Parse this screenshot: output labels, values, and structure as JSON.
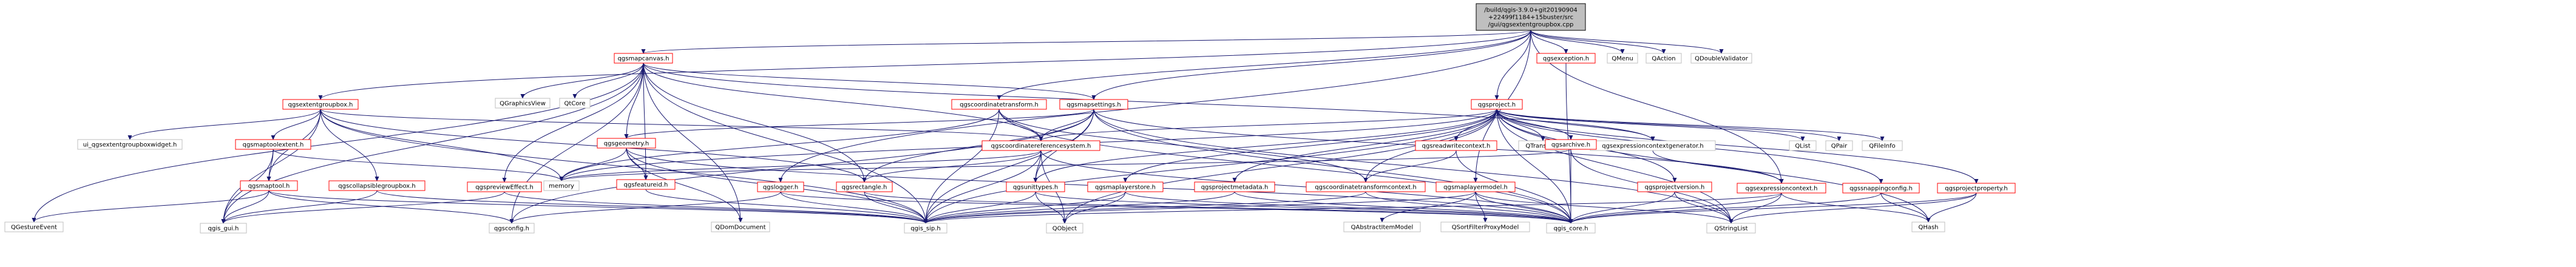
{
  "diagram": {
    "colors": {
      "root_fill": "#bfbfbf",
      "root_border": "#000000",
      "local_border": "#ff0000",
      "system_border": "#bfbfbf",
      "edge": "#191970",
      "background": "#ffffff"
    },
    "nodes": [
      {
        "id": "root",
        "label": "/build/qgis-3.9.0+git20190904\n+22499f1184+15buster/src\n/gui/qgsextentgroupbox.cpp",
        "kind": "root"
      },
      {
        "id": "qgsmapcanvas",
        "label": "qgsmapcanvas.h",
        "kind": "local"
      },
      {
        "id": "qgsextentgroupbox",
        "label": "qgsextentgroupbox.h",
        "kind": "local"
      },
      {
        "id": "qgscoordinatetransform",
        "label": "qgscoordinatetransform.h",
        "kind": "local"
      },
      {
        "id": "qgsmapsettings",
        "label": "qgsmapsettings.h",
        "kind": "local"
      },
      {
        "id": "qgsproject",
        "label": "qgsproject.h",
        "kind": "local"
      },
      {
        "id": "qgsexception",
        "label": "qgsexception.h",
        "kind": "local"
      },
      {
        "id": "QMenu",
        "label": "QMenu",
        "kind": "system"
      },
      {
        "id": "QAction",
        "label": "QAction",
        "kind": "system"
      },
      {
        "id": "QDoubleValidator",
        "label": "QDoubleValidator",
        "kind": "system"
      },
      {
        "id": "QGraphicsView",
        "label": "QGraphicsView",
        "kind": "system"
      },
      {
        "id": "QtCore",
        "label": "QtCore",
        "kind": "system"
      },
      {
        "id": "ui_qgsextentgroupboxwidget",
        "label": "ui_qgsextentgroupboxwidget.h",
        "kind": "system"
      },
      {
        "id": "qgsmaptoolextent",
        "label": "qgsmaptoolextent.h",
        "kind": "local"
      },
      {
        "id": "qgsgeometry",
        "label": "qgsgeometry.h",
        "kind": "local"
      },
      {
        "id": "qgscoordinatereferencesystem",
        "label": "qgscoordinatereferencesystem.h",
        "kind": "local"
      },
      {
        "id": "qgsreadwritecontext",
        "label": "qgsreadwritecontext.h",
        "kind": "local"
      },
      {
        "id": "QTranslator",
        "label": "QTranslator",
        "kind": "system"
      },
      {
        "id": "qgsexpressioncontextgenerator",
        "label": "qgsexpressioncontextgenerator.h",
        "kind": "system"
      },
      {
        "id": "QList",
        "label": "QList",
        "kind": "system"
      },
      {
        "id": "QPair",
        "label": "QPair",
        "kind": "system"
      },
      {
        "id": "QFileInfo",
        "label": "QFileInfo",
        "kind": "system"
      },
      {
        "id": "qgsmaptool",
        "label": "qgsmaptool.h",
        "kind": "local"
      },
      {
        "id": "qgscollapsiblegroupbox",
        "label": "qgscollapsiblegroupbox.h",
        "kind": "local"
      },
      {
        "id": "qgspreviewEffect",
        "label": "qgspreviewEffect.h",
        "kind": "local"
      },
      {
        "id": "qgsfeatureid",
        "label": "qgsfeatureid.h",
        "kind": "local"
      },
      {
        "id": "memory",
        "label": "memory",
        "kind": "system"
      },
      {
        "id": "qgslogger",
        "label": "qgslogger.h",
        "kind": "local"
      },
      {
        "id": "qgsrectangle",
        "label": "qgsrectangle.h",
        "kind": "local"
      },
      {
        "id": "qgsunittypes",
        "label": "qgsunittypes.h",
        "kind": "local"
      },
      {
        "id": "qgsmaplayerstore",
        "label": "qgsmaplayerstore.h",
        "kind": "local"
      },
      {
        "id": "qgsprojectmetadata",
        "label": "qgsprojectmetadata.h",
        "kind": "local"
      },
      {
        "id": "qgscoordinatetransformcontext",
        "label": "qgscoordinatetransformcontext.h",
        "kind": "local"
      },
      {
        "id": "qgsmaplayermodel",
        "label": "qgsmaplayermodel.h",
        "kind": "local"
      },
      {
        "id": "qgsarchive",
        "label": "qgsarchive.h",
        "kind": "local"
      },
      {
        "id": "qgsprojectversion",
        "label": "qgsprojectversion.h",
        "kind": "local"
      },
      {
        "id": "qgsexpressioncontext",
        "label": "qgsexpressioncontext.h",
        "kind": "local"
      },
      {
        "id": "qgssnappingconfig",
        "label": "qgssnappingconfig.h",
        "kind": "local"
      },
      {
        "id": "qgsprojectproperty",
        "label": "qgsprojectproperty.h",
        "kind": "local"
      },
      {
        "id": "QGestureEvent",
        "label": "QGestureEvent",
        "kind": "system"
      },
      {
        "id": "qgis_gui",
        "label": "qgis_gui.h",
        "kind": "system"
      },
      {
        "id": "qgsconfig",
        "label": "qgsconfig.h",
        "kind": "system"
      },
      {
        "id": "qgis_sip",
        "label": "qgis_sip.h",
        "kind": "system"
      },
      {
        "id": "QDomDocument",
        "label": "QDomDocument",
        "kind": "system"
      },
      {
        "id": "QObject",
        "label": "QObject",
        "kind": "system"
      },
      {
        "id": "QAbstractItemModel",
        "label": "QAbstractItemModel",
        "kind": "system"
      },
      {
        "id": "QSortFilterProxyModel",
        "label": "QSortFilterProxyModel",
        "kind": "system"
      },
      {
        "id": "qgis_core",
        "label": "qgis_core.h",
        "kind": "system"
      },
      {
        "id": "QStringList",
        "label": "QStringList",
        "kind": "system"
      },
      {
        "id": "QHash",
        "label": "QHash",
        "kind": "system"
      }
    ],
    "edges": [
      [
        "root",
        "qgsmapcanvas"
      ],
      [
        "root",
        "qgsextentgroupbox"
      ],
      [
        "root",
        "qgscoordinatetransform"
      ],
      [
        "root",
        "qgsmapsettings"
      ],
      [
        "root",
        "qgsproject"
      ],
      [
        "root",
        "qgsexception"
      ],
      [
        "root",
        "QMenu"
      ],
      [
        "root",
        "QAction"
      ],
      [
        "root",
        "QDoubleValidator"
      ],
      [
        "root",
        "qgslogger"
      ],
      [
        "root",
        "qgsmaplayermodel"
      ],
      [
        "root",
        "qgsexpressioncontext"
      ],
      [
        "qgsmapcanvas",
        "QGraphicsView"
      ],
      [
        "qgsmapcanvas",
        "QtCore"
      ],
      [
        "qgsmapcanvas",
        "qgsmapsettings"
      ],
      [
        "qgsmapcanvas",
        "qgsgeometry"
      ],
      [
        "qgsmapcanvas",
        "qgsfeatureid"
      ],
      [
        "qgsmapcanvas",
        "qgsrectangle"
      ],
      [
        "qgsmapcanvas",
        "qgspreviewEffect"
      ],
      [
        "qgsmapcanvas",
        "qgsconfig"
      ],
      [
        "qgsmapcanvas",
        "qgis_gui"
      ],
      [
        "qgsmapcanvas",
        "QGestureEvent"
      ],
      [
        "qgsmapcanvas",
        "qgis_sip"
      ],
      [
        "qgsmapcanvas",
        "QDomDocument"
      ],
      [
        "qgsmapcanvas",
        "qgsexpressioncontextgenerator"
      ],
      [
        "qgsmapcanvas",
        "qgscoordinatereferencesystem"
      ],
      [
        "qgsextentgroupbox",
        "ui_qgsextentgroupboxwidget"
      ],
      [
        "qgsextentgroupbox",
        "qgsmaptoolextent"
      ],
      [
        "qgsextentgroupbox",
        "qgscollapsiblegroupbox"
      ],
      [
        "qgsextentgroupbox",
        "qgsmaptool"
      ],
      [
        "qgsextentgroupbox",
        "qgis_gui"
      ],
      [
        "qgsextentgroupbox",
        "memory"
      ],
      [
        "qgsextentgroupbox",
        "qgsrectangle"
      ],
      [
        "qgsextentgroupbox",
        "qgscoordinatereferencesystem"
      ],
      [
        "qgsextentgroupbox",
        "qgis_sip"
      ],
      [
        "qgsmaptoolextent",
        "qgsmaptool"
      ],
      [
        "qgsmaptoolextent",
        "qgis_gui"
      ],
      [
        "qgsmaptoolextent",
        "memory"
      ],
      [
        "qgsmaptool",
        "qgsconfig"
      ],
      [
        "qgsmaptool",
        "qgis_gui"
      ],
      [
        "qgsmaptool",
        "QGestureEvent"
      ],
      [
        "qgsmaptool",
        "qgis_sip"
      ],
      [
        "qgscollapsiblegroupbox",
        "qgis_gui"
      ],
      [
        "qgscollapsiblegroupbox",
        "qgis_sip"
      ],
      [
        "qgspreviewEffect",
        "qgis_gui"
      ],
      [
        "qgspreviewEffect",
        "qgis_sip"
      ],
      [
        "qgscoordinatetransform",
        "qgscoordinatereferencesystem"
      ],
      [
        "qgscoordinatetransform",
        "qgis_sip"
      ],
      [
        "qgscoordinatetransform",
        "qgis_core"
      ],
      [
        "qgscoordinatetransform",
        "qgscoordinatetransformcontext"
      ],
      [
        "qgscoordinatetransform",
        "memory"
      ],
      [
        "qgsmapsettings",
        "qgscoordinatereferencesystem"
      ],
      [
        "qgsmapsettings",
        "qgsgeometry"
      ],
      [
        "qgsmapsettings",
        "qgsrectangle"
      ],
      [
        "qgsmapsettings",
        "qgsunittypes"
      ],
      [
        "qgsmapsettings",
        "qgis_sip"
      ],
      [
        "qgsmapsettings",
        "qgis_core"
      ],
      [
        "qgsmapsettings",
        "QStringList"
      ],
      [
        "qgsmapsettings",
        "qgsconfig"
      ],
      [
        "qgsmapsettings",
        "qgsexpressioncontext"
      ],
      [
        "qgsproject",
        "QList"
      ],
      [
        "qgsproject",
        "QPair"
      ],
      [
        "qgsproject",
        "QFileInfo"
      ],
      [
        "qgsproject",
        "QTranslator"
      ],
      [
        "qgsproject",
        "qgsexpressioncontextgenerator"
      ],
      [
        "qgsproject",
        "qgsreadwritecontext"
      ],
      [
        "qgsproject",
        "qgsarchive"
      ],
      [
        "qgsproject",
        "qgsprojectversion"
      ],
      [
        "qgsproject",
        "qgssnappingconfig"
      ],
      [
        "qgsproject",
        "qgsprojectproperty"
      ],
      [
        "qgsproject",
        "qgsprojectmetadata"
      ],
      [
        "qgsproject",
        "qgsmaplayerstore"
      ],
      [
        "qgsproject",
        "qgscoordinatetransformcontext"
      ],
      [
        "qgsproject",
        "qgscoordinatereferencesystem"
      ],
      [
        "qgsproject",
        "qgsunittypes"
      ],
      [
        "qgsproject",
        "qgis_sip"
      ],
      [
        "qgsproject",
        "qgis_core"
      ],
      [
        "qgsproject",
        "QStringList"
      ],
      [
        "qgsproject",
        "QHash"
      ],
      [
        "qgsproject",
        "memory"
      ],
      [
        "qgsproject",
        "QObject"
      ],
      [
        "qgsexception",
        "qgis_core"
      ],
      [
        "qgsgeometry",
        "memory"
      ],
      [
        "qgsgeometry",
        "qgsfeatureid"
      ],
      [
        "qgsgeometry",
        "qgis_sip"
      ],
      [
        "qgsgeometry",
        "qgis_core"
      ],
      [
        "qgsgeometry",
        "QDomDocument"
      ],
      [
        "qgscoordinatereferencesystem",
        "memory"
      ],
      [
        "qgscoordinatereferencesystem",
        "qgsunittypes"
      ],
      [
        "qgscoordinatereferencesystem",
        "qgis_sip"
      ],
      [
        "qgscoordinatereferencesystem",
        "qgis_core"
      ],
      [
        "qgscoordinatereferencesystem",
        "QObject"
      ],
      [
        "qgscoordinatereferencesystem",
        "qgsrectangle"
      ],
      [
        "qgsreadwritecontext",
        "qgis_core"
      ],
      [
        "qgsreadwritecontext",
        "qgscoordinatetransformcontext"
      ],
      [
        "qgsarchive",
        "qgis_core"
      ],
      [
        "qgsarchive",
        "QStringList"
      ],
      [
        "qgsarchive",
        "memory"
      ],
      [
        "qgsexpressioncontextgenerator",
        "qgsexpressioncontext"
      ],
      [
        "qgsfeatureid",
        "qgis_sip"
      ],
      [
        "qgslogger",
        "qgis_sip"
      ],
      [
        "qgslogger",
        "qgsconfig"
      ],
      [
        "qgslogger",
        "qgis_core"
      ],
      [
        "qgsrectangle",
        "qgis_sip"
      ],
      [
        "qgsrectangle",
        "qgis_core"
      ],
      [
        "qgsunittypes",
        "qgis_sip"
      ],
      [
        "qgsunittypes",
        "qgis_core"
      ],
      [
        "qgsunittypes",
        "QObject"
      ],
      [
        "qgsmaplayerstore",
        "qgis_sip"
      ],
      [
        "qgsmaplayerstore",
        "qgis_core"
      ],
      [
        "qgsmaplayerstore",
        "QObject"
      ],
      [
        "qgsprojectmetadata",
        "qgis_sip"
      ],
      [
        "qgsprojectmetadata",
        "qgis_core"
      ],
      [
        "qgscoordinatetransformcontext",
        "qgis_sip"
      ],
      [
        "qgscoordinatetransformcontext",
        "qgis_core"
      ],
      [
        "qgsmaplayermodel",
        "QAbstractItemModel"
      ],
      [
        "qgsmaplayermodel",
        "QSortFilterProxyModel"
      ],
      [
        "qgsmaplayermodel",
        "qgis_sip"
      ],
      [
        "qgsmaplayermodel",
        "qgis_core"
      ],
      [
        "qgsmaplayermodel",
        "QStringList"
      ],
      [
        "qgsprojectversion",
        "qgis_core"
      ],
      [
        "qgsprojectversion",
        "QStringList"
      ],
      [
        "qgsexpressioncontext",
        "qgis_sip"
      ],
      [
        "qgsexpressioncontext",
        "qgis_core"
      ],
      [
        "qgsexpressioncontext",
        "QStringList"
      ],
      [
        "qgsexpressioncontext",
        "QHash"
      ],
      [
        "qgssnappingconfig",
        "qgis_core"
      ],
      [
        "qgssnappingconfig",
        "QHash"
      ],
      [
        "qgsprojectproperty",
        "qgis_core"
      ],
      [
        "qgsprojectproperty",
        "QHash"
      ],
      [
        "qgsprojectproperty",
        "QStringList"
      ]
    ]
  }
}
